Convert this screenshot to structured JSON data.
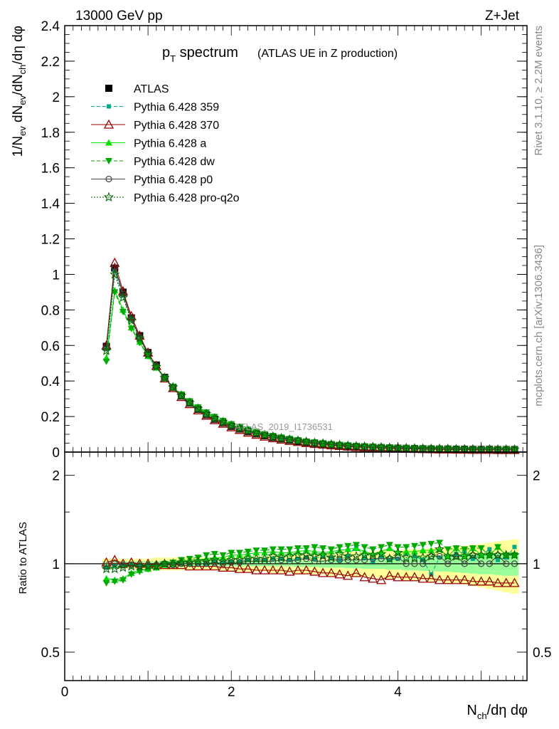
{
  "header": {
    "energy": "13000 GeV pp",
    "process": "Z+Jet",
    "title_main": "p",
    "title_sub": "T",
    "title_word": " spectrum",
    "title_note": "(ATLAS UE in Z production)"
  },
  "side_text": {
    "rivet": "Rivet 3.1.10, ≥ 2.2M events",
    "mcplots": "mcplots.cern.ch [arXiv:1306.3436]"
  },
  "watermark": "ATLAS_2019_I1736531",
  "chart_data": [
    {
      "type": "line",
      "panel": "main",
      "ylabel": "1/N_ev dN_ev/dN_ch/dη dφ",
      "ylim": [
        0,
        2.4
      ],
      "yticks": [
        "0",
        "0.2",
        "0.4",
        "0.6",
        "0.8",
        "1",
        "1.2",
        "1.4",
        "1.6",
        "1.8",
        "2",
        "2.2",
        "2.4"
      ],
      "xlim": [
        0,
        5.55
      ],
      "x": [
        0.5,
        0.6,
        0.7,
        0.8,
        0.9,
        1.0,
        1.1,
        1.2,
        1.3,
        1.4,
        1.5,
        1.6,
        1.7,
        1.8,
        1.9,
        2.0,
        2.1,
        2.2,
        2.3,
        2.4,
        2.5,
        2.6,
        2.7,
        2.8,
        2.9,
        3.0,
        3.1,
        3.2,
        3.3,
        3.4,
        3.5,
        3.6,
        3.7,
        3.8,
        3.9,
        4.0,
        4.1,
        4.2,
        4.3,
        4.4,
        4.5,
        4.6,
        4.7,
        4.8,
        4.9,
        5.0,
        5.1,
        5.2,
        5.3,
        5.4
      ],
      "series": [
        {
          "name": "ATLAS",
          "values": [
            0.595,
            1.035,
            0.9,
            0.755,
            0.655,
            0.56,
            0.49,
            0.42,
            0.365,
            0.315,
            0.275,
            0.24,
            0.21,
            0.185,
            0.165,
            0.145,
            0.13,
            0.115,
            0.103,
            0.092,
            0.082,
            0.074,
            0.067,
            0.06,
            0.054,
            0.049,
            0.045,
            0.041,
            0.037,
            0.034,
            0.031,
            0.029,
            0.027,
            0.025,
            0.023,
            0.022,
            0.021,
            0.02,
            0.019,
            0.018,
            0.017,
            0.017,
            0.016,
            0.016,
            0.015,
            0.015,
            0.015,
            0.014,
            0.014,
            0.014
          ]
        },
        {
          "name": "Pythia 6.428 359",
          "values": [
            0.58,
            1.02,
            0.88,
            0.745,
            0.64,
            0.55,
            0.48,
            0.415,
            0.36,
            0.315,
            0.275,
            0.24,
            0.21,
            0.187,
            0.167,
            0.148,
            0.133,
            0.118,
            0.106,
            0.095,
            0.085,
            0.077,
            0.069,
            0.062,
            0.056,
            0.051,
            0.046,
            0.042,
            0.038,
            0.035,
            0.032,
            0.03,
            0.028,
            0.026,
            0.024,
            0.023,
            0.022,
            0.021,
            0.02,
            0.019,
            0.018,
            0.017,
            0.017,
            0.016,
            0.016,
            0.015,
            0.015,
            0.015,
            0.014,
            0.014
          ]
        },
        {
          "name": "Pythia 6.428 370",
          "values": [
            0.6,
            1.065,
            0.905,
            0.765,
            0.655,
            0.56,
            0.485,
            0.415,
            0.36,
            0.31,
            0.27,
            0.235,
            0.205,
            0.18,
            0.16,
            0.14,
            0.125,
            0.11,
            0.098,
            0.087,
            0.078,
            0.07,
            0.063,
            0.057,
            0.051,
            0.046,
            0.042,
            0.038,
            0.034,
            0.031,
            0.028,
            0.026,
            0.024,
            0.022,
            0.021,
            0.02,
            0.019,
            0.018,
            0.017,
            0.016,
            0.015,
            0.015,
            0.014,
            0.014,
            0.013,
            0.013,
            0.013,
            0.012,
            0.012,
            0.012
          ]
        },
        {
          "name": "Pythia 6.428 a",
          "values": [
            0.53,
            0.91,
            0.8,
            0.7,
            0.62,
            0.54,
            0.475,
            0.415,
            0.365,
            0.32,
            0.282,
            0.248,
            0.219,
            0.195,
            0.174,
            0.155,
            0.139,
            0.124,
            0.112,
            0.1,
            0.09,
            0.081,
            0.073,
            0.066,
            0.06,
            0.054,
            0.049,
            0.045,
            0.041,
            0.038,
            0.035,
            0.032,
            0.03,
            0.028,
            0.026,
            0.024,
            0.023,
            0.022,
            0.021,
            0.02,
            0.019,
            0.018,
            0.018,
            0.017,
            0.017,
            0.016,
            0.016,
            0.016,
            0.015,
            0.015
          ]
        },
        {
          "name": "Pythia 6.428 dw",
          "values": [
            0.51,
            0.9,
            0.79,
            0.695,
            0.615,
            0.54,
            0.475,
            0.418,
            0.368,
            0.325,
            0.287,
            0.253,
            0.224,
            0.199,
            0.177,
            0.158,
            0.142,
            0.127,
            0.114,
            0.102,
            0.092,
            0.083,
            0.075,
            0.068,
            0.061,
            0.056,
            0.051,
            0.046,
            0.042,
            0.039,
            0.036,
            0.033,
            0.031,
            0.029,
            0.027,
            0.025,
            0.024,
            0.023,
            0.022,
            0.021,
            0.02,
            0.019,
            0.018,
            0.018,
            0.017,
            0.017,
            0.016,
            0.016,
            0.016,
            0.015
          ]
        },
        {
          "name": "Pythia 6.428 p0",
          "values": [
            0.585,
            1.04,
            0.89,
            0.75,
            0.645,
            0.555,
            0.485,
            0.418,
            0.362,
            0.315,
            0.274,
            0.24,
            0.211,
            0.186,
            0.165,
            0.147,
            0.131,
            0.117,
            0.105,
            0.094,
            0.084,
            0.076,
            0.068,
            0.062,
            0.056,
            0.05,
            0.046,
            0.042,
            0.038,
            0.035,
            0.032,
            0.03,
            0.028,
            0.026,
            0.024,
            0.023,
            0.021,
            0.02,
            0.019,
            0.019,
            0.018,
            0.017,
            0.017,
            0.016,
            0.016,
            0.015,
            0.015,
            0.015,
            0.014,
            0.014
          ]
        },
        {
          "name": "Pythia 6.428 pro-q2o",
          "values": [
            0.57,
            1.0,
            0.87,
            0.74,
            0.64,
            0.55,
            0.48,
            0.418,
            0.365,
            0.318,
            0.278,
            0.244,
            0.215,
            0.19,
            0.169,
            0.15,
            0.134,
            0.12,
            0.107,
            0.096,
            0.087,
            0.078,
            0.071,
            0.064,
            0.058,
            0.052,
            0.048,
            0.043,
            0.04,
            0.036,
            0.033,
            0.031,
            0.029,
            0.027,
            0.025,
            0.024,
            0.022,
            0.021,
            0.02,
            0.019,
            0.019,
            0.018,
            0.017,
            0.017,
            0.016,
            0.016,
            0.016,
            0.015,
            0.015,
            0.015
          ]
        }
      ]
    },
    {
      "type": "line",
      "panel": "ratio",
      "ylabel": "Ratio to ATLAS",
      "xlabel": "N_ch/dη dφ",
      "ylim": [
        0.4,
        2.4
      ],
      "yscale": "log",
      "yticks": [
        "0.5",
        "1",
        "2"
      ],
      "xticks": [
        "0",
        "2",
        "4"
      ],
      "x": [
        0.5,
        0.6,
        0.7,
        0.8,
        0.9,
        1.0,
        1.1,
        1.2,
        1.3,
        1.4,
        1.5,
        1.6,
        1.7,
        1.8,
        1.9,
        2.0,
        2.1,
        2.2,
        2.3,
        2.4,
        2.5,
        2.6,
        2.7,
        2.8,
        2.9,
        3.0,
        3.1,
        3.2,
        3.3,
        3.4,
        3.5,
        3.6,
        3.7,
        3.8,
        3.9,
        4.0,
        4.1,
        4.2,
        4.3,
        4.4,
        4.5,
        4.6,
        4.7,
        4.8,
        4.9,
        5.0,
        5.1,
        5.2,
        5.3,
        5.4
      ],
      "uncertainty_band": {
        "stat_halfwidth": [
          0.02,
          0.02,
          0.02,
          0.02,
          0.02,
          0.02,
          0.02,
          0.02,
          0.02,
          0.02,
          0.02,
          0.02,
          0.02,
          0.02,
          0.02,
          0.02,
          0.02,
          0.02,
          0.02,
          0.02,
          0.02,
          0.02,
          0.02,
          0.025,
          0.025,
          0.025,
          0.03,
          0.03,
          0.03,
          0.035,
          0.035,
          0.04,
          0.04,
          0.04,
          0.045,
          0.045,
          0.05,
          0.05,
          0.055,
          0.055,
          0.06,
          0.06,
          0.065,
          0.07,
          0.075,
          0.08,
          0.08,
          0.085,
          0.09,
          0.09
        ],
        "syst_halfwidth": [
          0.04,
          0.04,
          0.04,
          0.04,
          0.04,
          0.04,
          0.05,
          0.05,
          0.05,
          0.05,
          0.05,
          0.05,
          0.05,
          0.05,
          0.05,
          0.05,
          0.06,
          0.06,
          0.06,
          0.06,
          0.07,
          0.07,
          0.07,
          0.08,
          0.08,
          0.08,
          0.08,
          0.09,
          0.09,
          0.1,
          0.1,
          0.1,
          0.1,
          0.11,
          0.11,
          0.11,
          0.12,
          0.12,
          0.12,
          0.13,
          0.13,
          0.14,
          0.14,
          0.15,
          0.16,
          0.17,
          0.18,
          0.19,
          0.2,
          0.21
        ]
      },
      "series": [
        {
          "name": "ATLAS",
          "values": [
            1,
            1,
            1,
            1,
            1,
            1,
            1,
            1,
            1,
            1,
            1,
            1,
            1,
            1,
            1,
            1,
            1,
            1,
            1,
            1,
            1,
            1,
            1,
            1,
            1,
            1,
            1,
            1,
            1,
            1,
            1,
            1,
            1,
            1,
            1,
            1,
            1,
            1,
            1,
            1,
            1,
            1,
            1,
            1,
            1,
            1,
            1,
            1,
            1,
            1
          ]
        },
        {
          "name": "Pythia 6.428 359",
          "values": [
            0.97,
            0.98,
            0.98,
            0.99,
            0.98,
            0.98,
            0.98,
            0.99,
            0.99,
            1.0,
            1.0,
            1.0,
            1.0,
            1.01,
            1.01,
            1.02,
            1.02,
            1.03,
            1.03,
            1.03,
            1.04,
            1.04,
            1.03,
            1.04,
            1.05,
            1.04,
            1.06,
            1.05,
            1.03,
            1.06,
            1.15,
            1.05,
            1.02,
            1.06,
            1.03,
            1.04,
            1.08,
            1.06,
            1.03,
            0.92,
            1.05,
            1.06,
            1.08,
            1.1,
            1.04,
            1.07,
            1.12,
            1.03,
            1.05,
            1.14
          ]
        },
        {
          "name": "Pythia 6.428 370",
          "values": [
            1.01,
            1.03,
            1.0,
            1.01,
            1.0,
            1.0,
            0.99,
            0.99,
            0.99,
            0.99,
            0.98,
            0.98,
            0.98,
            0.98,
            0.97,
            0.97,
            0.96,
            0.96,
            0.95,
            0.95,
            0.95,
            0.95,
            0.94,
            0.95,
            0.95,
            0.94,
            0.93,
            0.93,
            0.92,
            0.91,
            0.93,
            0.9,
            0.89,
            0.88,
            0.91,
            0.9,
            0.9,
            0.9,
            0.89,
            0.89,
            0.88,
            0.88,
            0.88,
            0.88,
            0.87,
            0.87,
            0.87,
            0.86,
            0.86,
            0.86
          ]
        },
        {
          "name": "Pythia 6.428 a",
          "values": [
            0.89,
            0.88,
            0.89,
            0.93,
            0.95,
            0.96,
            0.97,
            0.99,
            1.0,
            1.02,
            1.03,
            1.03,
            1.04,
            1.05,
            1.05,
            1.07,
            1.07,
            1.08,
            1.09,
            1.09,
            1.1,
            1.09,
            1.09,
            1.1,
            1.11,
            1.1,
            1.09,
            1.1,
            1.11,
            1.12,
            1.13,
            1.1,
            1.08,
            1.1,
            1.13,
            1.09,
            1.1,
            1.1,
            1.11,
            1.11,
            1.12,
            1.06,
            1.13,
            1.06,
            1.13,
            1.07,
            1.07,
            1.14,
            1.07,
            1.07
          ]
        },
        {
          "name": "Pythia 6.428 dw",
          "values": [
            0.86,
            0.87,
            0.88,
            0.92,
            0.94,
            0.96,
            0.97,
            1.0,
            1.01,
            1.03,
            1.04,
            1.05,
            1.07,
            1.08,
            1.07,
            1.09,
            1.09,
            1.1,
            1.11,
            1.11,
            1.12,
            1.12,
            1.12,
            1.13,
            1.13,
            1.14,
            1.13,
            1.12,
            1.14,
            1.15,
            1.16,
            1.14,
            1.12,
            1.14,
            1.16,
            1.14,
            1.14,
            1.15,
            1.16,
            1.17,
            1.18,
            1.12,
            1.13,
            1.12,
            1.13,
            1.13,
            1.07,
            1.14,
            1.07,
            1.07
          ]
        },
        {
          "name": "Pythia 6.428 p0",
          "values": [
            0.98,
            1.0,
            0.99,
            0.99,
            0.98,
            0.99,
            0.99,
            1.0,
            0.99,
            1.0,
            1.0,
            1.0,
            1.0,
            1.01,
            1.0,
            1.01,
            1.01,
            1.02,
            1.02,
            1.02,
            1.02,
            1.03,
            1.02,
            1.03,
            1.04,
            1.02,
            1.02,
            1.03,
            1.03,
            1.03,
            1.03,
            1.03,
            1.04,
            1.04,
            1.04,
            1.05,
            1.0,
            1.0,
            1.0,
            1.06,
            1.06,
            1.0,
            1.06,
            1.0,
            1.07,
            1.0,
            1.0,
            1.07,
            1.0,
            1.0
          ]
        },
        {
          "name": "Pythia 6.428 pro-q2o",
          "values": [
            0.96,
            0.96,
            0.97,
            0.98,
            0.98,
            0.98,
            0.98,
            1.0,
            1.0,
            1.01,
            1.01,
            1.02,
            1.02,
            1.03,
            1.02,
            1.03,
            1.03,
            1.04,
            1.04,
            1.04,
            1.06,
            1.05,
            1.06,
            1.07,
            1.07,
            1.06,
            1.07,
            1.05,
            1.08,
            1.06,
            1.06,
            1.07,
            1.07,
            1.08,
            1.04,
            1.09,
            1.05,
            1.05,
            1.05,
            1.06,
            1.12,
            1.06,
            1.06,
            1.06,
            1.07,
            1.07,
            1.07,
            1.07,
            1.07,
            1.07
          ]
        }
      ]
    }
  ],
  "legend": {
    "placement": "top-left",
    "entries": [
      "ATLAS",
      "Pythia 6.428 359",
      "Pythia 6.428 370",
      "Pythia 6.428 a",
      "Pythia 6.428 dw",
      "Pythia 6.428 p0",
      "Pythia 6.428 pro-q2o"
    ]
  },
  "colors": {
    "ATLAS": "#000000",
    "Pythia 6.428 359": "#00aa88",
    "Pythia 6.428 370": "#990000",
    "Pythia 6.428 a": "#00dd00",
    "Pythia 6.428 dw": "#00aa00",
    "Pythia 6.428 p0": "#444444",
    "Pythia 6.428 pro-q2o": "#006600",
    "band_stat": "#99ff99",
    "band_syst": "#ffff99"
  },
  "markers": {
    "ATLAS": "square",
    "Pythia 6.428 359": "small-square",
    "Pythia 6.428 370": "open-triangle-up",
    "Pythia 6.428 a": "triangle-up",
    "Pythia 6.428 dw": "triangle-down",
    "Pythia 6.428 p0": "open-circle",
    "Pythia 6.428 pro-q2o": "open-star"
  },
  "linestyles": {
    "Pythia 6.428 359": "dashed",
    "Pythia 6.428 370": "solid",
    "Pythia 6.428 a": "solid",
    "Pythia 6.428 dw": "dashed",
    "Pythia 6.428 p0": "solid",
    "Pythia 6.428 pro-q2o": "dotted"
  }
}
